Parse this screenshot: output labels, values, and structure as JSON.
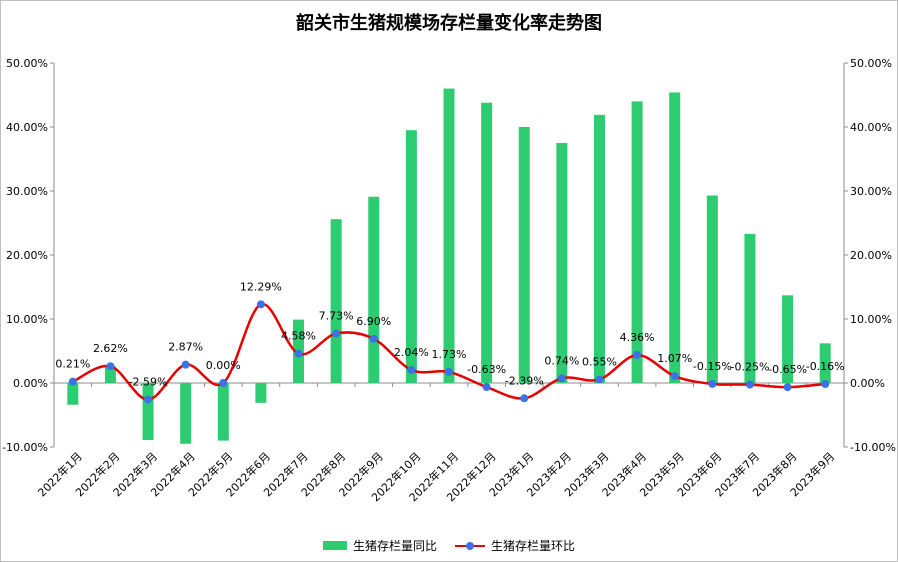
{
  "chart_data": {
    "type": "bar",
    "title": "韶关市生猪规模场存栏量变化率走势图",
    "categories": [
      "2022年1月",
      "2022年2月",
      "2022年3月",
      "2022年4月",
      "2022年5月",
      "2022年6月",
      "2022年7月",
      "2022年8月",
      "2022年9月",
      "2022年10月",
      "2022年11月",
      "2022年12月",
      "2023年1月",
      "2023年2月",
      "2023年3月",
      "2023年4月",
      "2023年5月",
      "2023年6月",
      "2023年7月",
      "2023年8月",
      "2023年9月"
    ],
    "ylim": [
      -10,
      50
    ],
    "y2lim": [
      -10,
      50
    ],
    "yticks": [
      "-10.00%",
      "0.00%",
      "10.00%",
      "20.00%",
      "30.00%",
      "40.00%",
      "50.00%"
    ],
    "y2ticks": [
      "-10.00%",
      "0.00%",
      "10.00%",
      "20.00%",
      "30.00%",
      "40.00%",
      "50.00%"
    ],
    "grid": false,
    "legend_position": "bottom",
    "series": [
      {
        "name": "生猪存栏量同比",
        "type": "bar",
        "color": "#2ecc71",
        "values": [
          -3.4,
          2.6,
          -8.9,
          -9.5,
          -9.0,
          -3.1,
          9.9,
          25.6,
          29.1,
          39.5,
          46.0,
          43.8,
          40.0,
          37.5,
          41.9,
          44.0,
          45.4,
          29.3,
          23.3,
          13.7,
          6.2
        ]
      },
      {
        "name": "生猪存栏量环比",
        "type": "line",
        "color": "#e60000",
        "marker_color": "#3a73e8",
        "values": [
          0.21,
          2.62,
          -2.59,
          2.87,
          0.0,
          12.29,
          4.58,
          7.73,
          6.9,
          2.04,
          1.73,
          -0.63,
          -2.39,
          0.74,
          0.55,
          4.36,
          1.07,
          -0.15,
          -0.25,
          -0.65,
          -0.16
        ],
        "labels": [
          "0.21%",
          "2.62%",
          "-2.59%",
          "2.87%",
          "0.00%",
          "12.29%",
          "4.58%",
          "7.73%",
          "6.90%",
          "2.04%",
          "1.73%",
          "-0.63%",
          "-2.39%",
          "0.74%",
          "0.55%",
          "4.36%",
          "1.07%",
          "-0.15%",
          "-0.25%",
          "-0.65%",
          "-0.16%"
        ]
      }
    ]
  }
}
